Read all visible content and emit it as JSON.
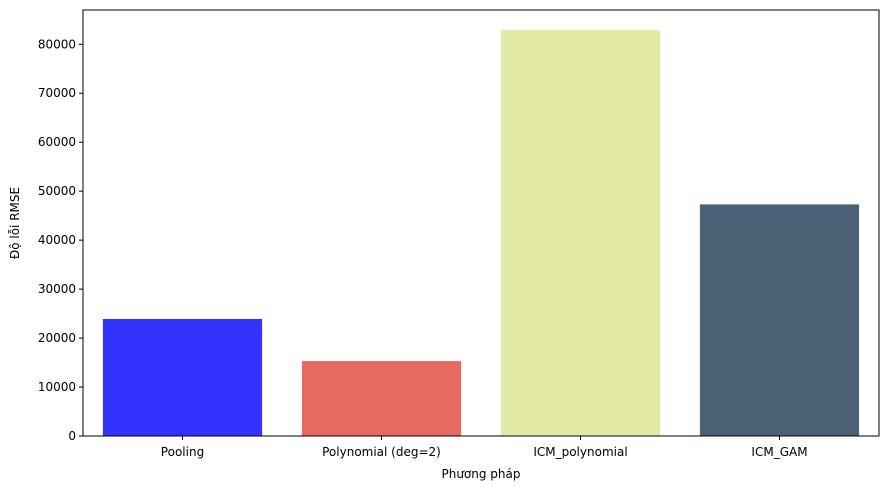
{
  "chart_data": {
    "type": "bar",
    "title": "",
    "xlabel": "Phương pháp",
    "ylabel": "Độ lỗi RMSE",
    "categories": [
      "Pooling",
      "Polynomial (deg=2)",
      "ICM_polynomial",
      "ICM_GAM"
    ],
    "values": [
      23900,
      15300,
      82900,
      47300
    ],
    "colors": [
      "#3333ff",
      "#e8695f",
      "#e3eaa6",
      "#4a6176"
    ],
    "ylim": [
      0,
      87000
    ],
    "yticks": [
      0,
      10000,
      20000,
      30000,
      40000,
      50000,
      60000,
      70000,
      80000
    ],
    "grid": false,
    "legend": "none"
  }
}
